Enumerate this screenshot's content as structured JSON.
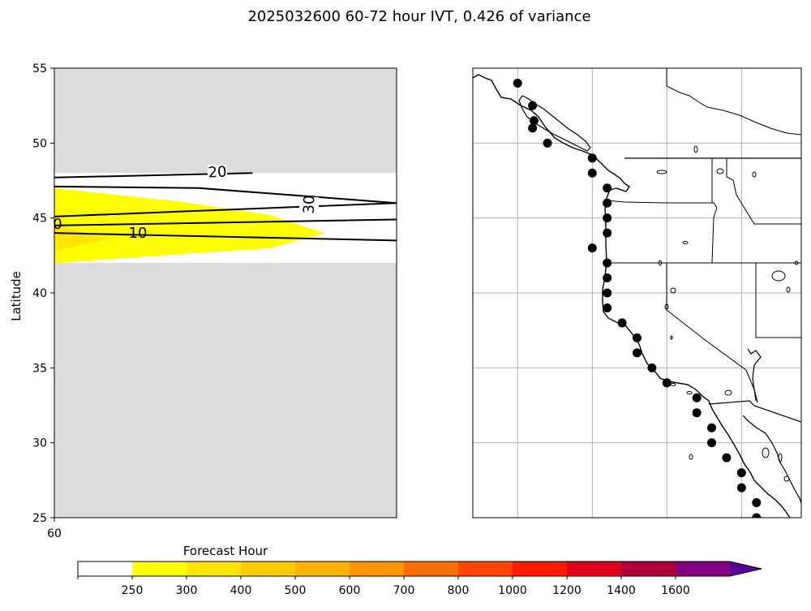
{
  "figure": {
    "title": "2025032600 60-72 hour IVT, 0.426 of variance"
  },
  "chart_data": [
    {
      "type": "area",
      "title": "",
      "xlabel": "",
      "ylabel": "Latitude",
      "ylim": [
        25,
        55
      ],
      "y_ticks": [
        25,
        30,
        35,
        40,
        45,
        50,
        55
      ],
      "x_ticks": [
        60
      ],
      "grid": false,
      "background_color": "#dcdcdc",
      "valid_lat_band": [
        42,
        48
      ],
      "filled_regions": [
        {
          "level": 250,
          "color": "#ffff00",
          "polygon": [
            [
              60,
              42
            ],
            [
              67,
              42.6
            ],
            [
              72,
              43
            ],
            [
              75,
              44
            ],
            [
              72,
              45.2
            ],
            [
              67,
              46.1
            ],
            [
              60,
              47
            ]
          ]
        },
        {
          "level": 300,
          "color": "#ffe600",
          "polygon": [
            [
              60,
              42.8
            ],
            [
              63,
              43.6
            ],
            [
              60,
              44.6
            ]
          ]
        }
      ],
      "contours": [
        {
          "label": "20",
          "points": [
            [
              60,
              47.7
            ],
            [
              71,
              48
            ]
          ]
        },
        {
          "label": "30",
          "points": [
            [
              60,
              47.1
            ],
            [
              68,
              47
            ],
            [
              79,
              46
            ],
            [
              60,
              45.1
            ]
          ]
        },
        {
          "label": "0",
          "points": [
            [
              60,
              44.5
            ],
            [
              79,
              44.9
            ]
          ]
        },
        {
          "label": "10",
          "points": [
            [
              60,
              44
            ],
            [
              79,
              43.5
            ]
          ]
        }
      ]
    },
    {
      "type": "scatter",
      "title": "",
      "projection": "PlateCarree",
      "xlim": [
        -135,
        -113
      ],
      "ylim": [
        25,
        55
      ],
      "grid": true,
      "grid_lons": [
        -132,
        -127,
        -122,
        -117
      ],
      "grid_lats": [
        30,
        35,
        40,
        45,
        50
      ],
      "points": [
        [
          -132,
          54
        ],
        [
          -131,
          52.5
        ],
        [
          -130.9,
          51.5
        ],
        [
          -131,
          51
        ],
        [
          -130,
          50
        ],
        [
          -127,
          49
        ],
        [
          -127,
          48
        ],
        [
          -126,
          47
        ],
        [
          -126,
          46
        ],
        [
          -126,
          45
        ],
        [
          -126,
          44
        ],
        [
          -127,
          43
        ],
        [
          -126,
          42
        ],
        [
          -126,
          41
        ],
        [
          -126,
          40
        ],
        [
          -126,
          39
        ],
        [
          -125,
          38
        ],
        [
          -124,
          37
        ],
        [
          -124,
          36
        ],
        [
          -123,
          35
        ],
        [
          -122,
          34
        ],
        [
          -120,
          33
        ],
        [
          -120,
          32
        ],
        [
          -119,
          31
        ],
        [
          -119,
          30
        ],
        [
          -118,
          29
        ],
        [
          -117,
          28
        ],
        [
          -117,
          27
        ],
        [
          -116,
          26
        ],
        [
          -116,
          25
        ]
      ]
    }
  ],
  "colorbar": {
    "label": "Forecast Hour",
    "boundaries": [
      250,
      300,
      400,
      500,
      600,
      700,
      800,
      1000,
      1200,
      1400,
      1600
    ],
    "tick_labels": [
      "250",
      "300",
      "400",
      "500",
      "600",
      "700",
      "800",
      "1000",
      "1200",
      "1400",
      "1600"
    ],
    "colors": [
      "#ffffff",
      "#ffff00",
      "#ffe600",
      "#ffcc00",
      "#ffb300",
      "#ff9500",
      "#ff6f00",
      "#ff4500",
      "#ff1a00",
      "#e0001b",
      "#b0003a",
      "#800080",
      "#5a0099"
    ],
    "extend": "max"
  }
}
